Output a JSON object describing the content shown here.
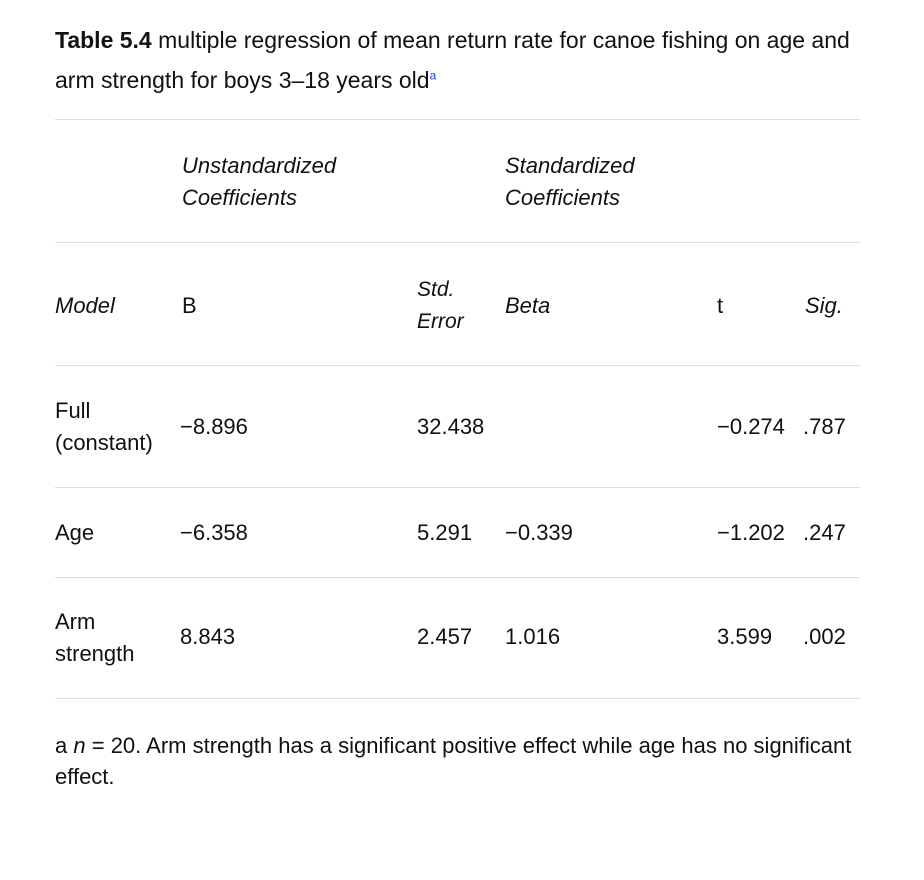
{
  "caption": {
    "label": "Table 5.4",
    "text": " multiple regression of mean return rate for canoe fishing on age and arm strength for boys 3–18 years old",
    "footnote_marker": "a"
  },
  "table": {
    "group_headers": {
      "unstandardized": [
        "Unstandardized",
        "Coefficients"
      ],
      "standardized": [
        "Standardized",
        "Coefficients"
      ]
    },
    "column_headers": {
      "model": "Model",
      "b": "B",
      "std_error": [
        "Std.",
        "Error"
      ],
      "beta": "Beta",
      "t": "t",
      "sig": "Sig."
    },
    "rows": [
      {
        "model": [
          "Full",
          "(constant)"
        ],
        "b": "−8.896",
        "std_error": "32.438",
        "beta": "",
        "t": "−0.274",
        "sig": ".787"
      },
      {
        "model": [
          "Age"
        ],
        "b": "−6.358",
        "std_error": "5.291",
        "beta": "−0.339",
        "t": "−1.202",
        "sig": ".247"
      },
      {
        "model": [
          "Arm",
          "strength"
        ],
        "b": "8.843",
        "std_error": "2.457",
        "beta": "1.016",
        "t": "3.599",
        "sig": ".002"
      }
    ]
  },
  "footnote": {
    "marker": "a",
    "n_symbol": "n",
    "text": " = 20. Arm strength has a significant positive effect while age has no significant effect."
  }
}
